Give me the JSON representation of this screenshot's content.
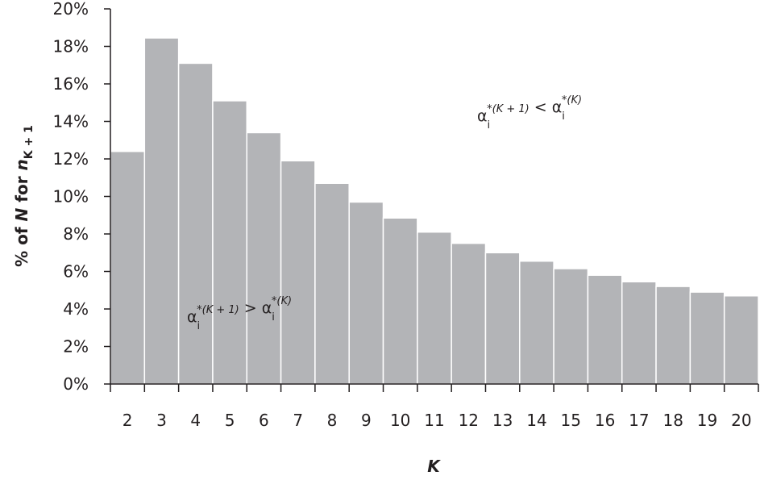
{
  "chart_data": {
    "type": "bar",
    "x_label": "K",
    "y_label": [
      "% of ",
      "N",
      " for ",
      "n",
      "K + 1"
    ],
    "categories": [
      "2",
      "3",
      "4",
      "5",
      "6",
      "7",
      "8",
      "9",
      "10",
      "11",
      "12",
      "13",
      "14",
      "15",
      "16",
      "17",
      "18",
      "19",
      "20"
    ],
    "values": [
      12.4,
      18.45,
      17.1,
      15.1,
      13.4,
      11.9,
      10.7,
      9.7,
      8.85,
      8.1,
      7.5,
      7.0,
      6.55,
      6.15,
      5.8,
      5.45,
      5.2,
      4.9,
      4.7
    ],
    "color": "#b3b4b7",
    "ylim": [
      0,
      20
    ],
    "yticks": [
      {
        "value": 0,
        "label": "0%"
      },
      {
        "value": 2,
        "label": "2%"
      },
      {
        "value": 4,
        "label": "4%"
      },
      {
        "value": 6,
        "label": "6%"
      },
      {
        "value": 8,
        "label": "8%"
      },
      {
        "value": 10,
        "label": "10%"
      },
      {
        "value": 12,
        "label": "12%"
      },
      {
        "value": 14,
        "label": "14%"
      },
      {
        "value": 16,
        "label": "16%"
      },
      {
        "value": 18,
        "label": "18%"
      },
      {
        "value": 20,
        "label": "20%"
      }
    ],
    "annotations": [
      [
        [
          "α",
          "i",
          "*(K + 1)"
        ],
        [
          " < α",
          "i",
          "*(K)"
        ]
      ],
      [
        [
          "α",
          "i",
          "*(K + 1)"
        ],
        [
          " > α",
          "i",
          "*(K)"
        ]
      ]
    ]
  }
}
